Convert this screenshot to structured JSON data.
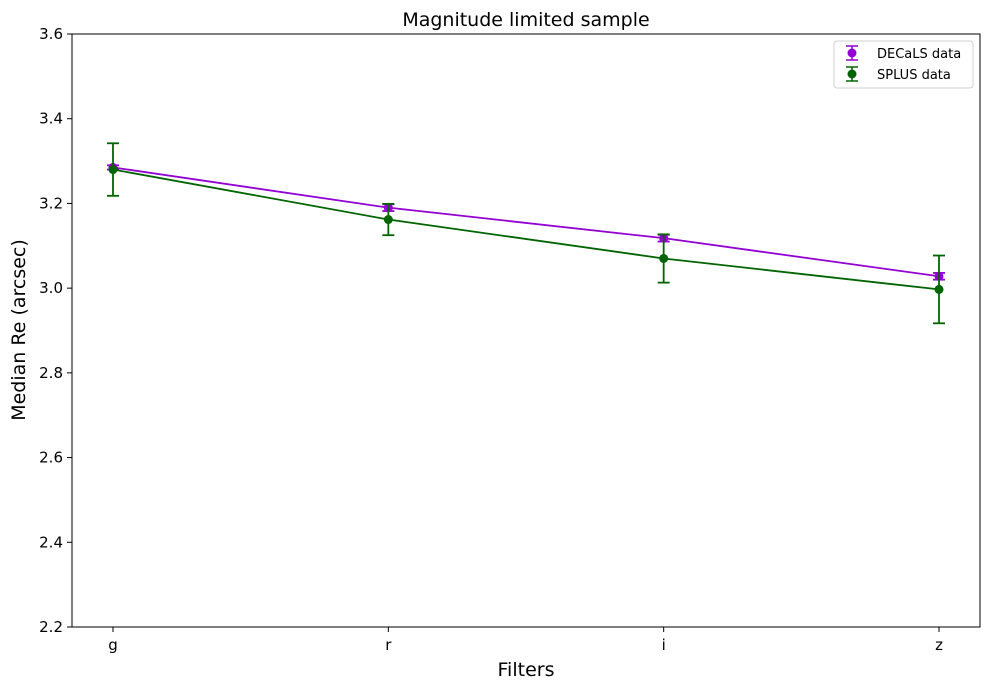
{
  "chart_data": {
    "type": "line",
    "title": "Magnitude limited sample",
    "xlabel": "Filters",
    "ylabel": "Median Re (arcsec)",
    "categories": [
      "g",
      "r",
      "i",
      "z"
    ],
    "ylim": [
      2.2,
      3.6
    ],
    "yticks": [
      "2.2",
      "2.4",
      "2.6",
      "2.8",
      "3.0",
      "3.2",
      "3.4",
      "3.6"
    ],
    "legend_position": "top-right",
    "grid": false,
    "series": [
      {
        "name": "DECaLS data",
        "color": "#9400d3",
        "values": [
          3.285,
          3.19,
          3.118,
          3.028
        ],
        "errors": [
          0.005,
          0.008,
          0.008,
          0.008
        ]
      },
      {
        "name": "SPLUS data",
        "color": "#006400",
        "values": [
          3.28,
          3.162,
          3.07,
          2.997
        ],
        "errors": [
          0.062,
          0.037,
          0.057,
          0.08
        ]
      }
    ]
  }
}
